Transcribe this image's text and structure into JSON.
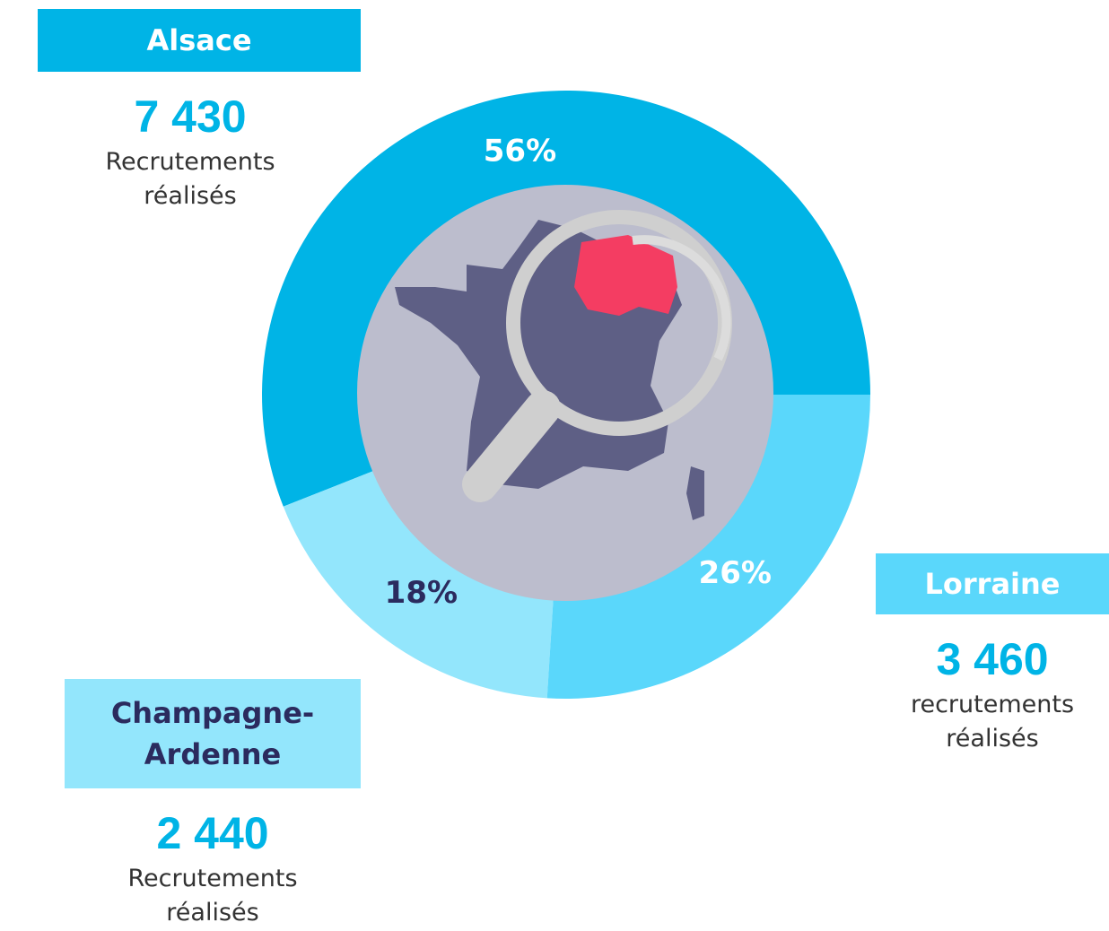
{
  "chart_data": {
    "type": "pie",
    "categories": [
      "Alsace",
      "Champagne-Ardenne",
      "Lorraine"
    ],
    "values": [
      56,
      18,
      26
    ],
    "value_labels": [
      "56%",
      "18%",
      "26%"
    ],
    "colors": [
      "#00b4e6",
      "#93e6fc",
      "#5ad7fb"
    ],
    "label_colors": [
      "#ffffff",
      "#2b2b5e",
      "#ffffff"
    ],
    "counts": [
      "7 430",
      "2 440",
      "3 460"
    ],
    "captions": [
      "Recrutements réalisés",
      "Recrutements réalisés",
      "recrutements réalisés"
    ]
  }
}
